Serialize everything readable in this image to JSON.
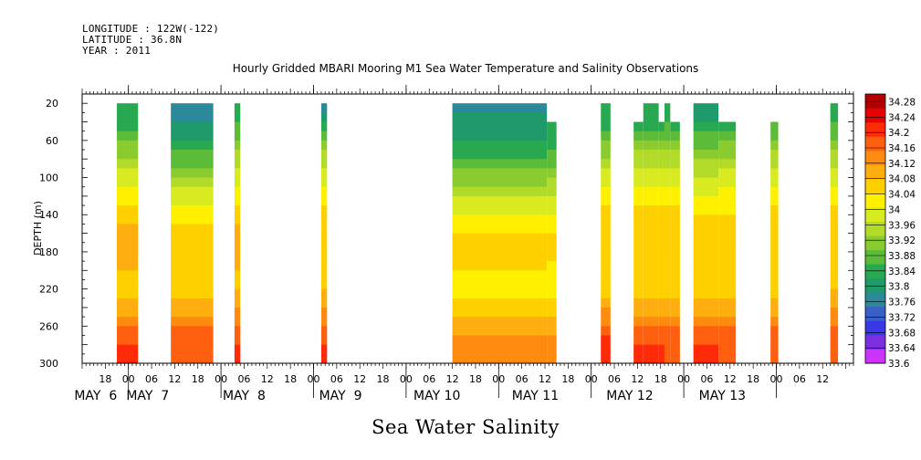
{
  "header": {
    "longitude": "LONGITUDE : 122W(-122)",
    "latitude": "LATITUDE : 36.8N",
    "year": "YEAR : 2011"
  },
  "chart_data": {
    "type": "heatmap",
    "title": "Hourly Gridded MBARI Mooring M1 Sea Water Temperature and Salinity Observations",
    "xlabel": "Sea Water Salinity",
    "ylabel": "DEPTH (m)",
    "x_unit": "hours since May 5 12:00",
    "xlim": [
      0,
      200
    ],
    "ylim": [
      300,
      0
    ],
    "y_ticks": [
      20,
      60,
      100,
      140,
      180,
      220,
      260,
      300
    ],
    "y_tick_labels": [
      "20",
      "60",
      "100",
      "140",
      "180",
      "220",
      "260",
      "300"
    ],
    "x_hour_ticks": [
      {
        "t": 6,
        "label": "18"
      },
      {
        "t": 12,
        "label": "00"
      },
      {
        "t": 18,
        "label": "06"
      },
      {
        "t": 24,
        "label": "12"
      },
      {
        "t": 30,
        "label": "18"
      },
      {
        "t": 36,
        "label": "00"
      },
      {
        "t": 42,
        "label": "06"
      },
      {
        "t": 48,
        "label": "12"
      },
      {
        "t": 54,
        "label": "18"
      },
      {
        "t": 60,
        "label": "00"
      },
      {
        "t": 66,
        "label": "06"
      },
      {
        "t": 72,
        "label": "12"
      },
      {
        "t": 78,
        "label": "18"
      },
      {
        "t": 84,
        "label": "00"
      },
      {
        "t": 90,
        "label": "06"
      },
      {
        "t": 96,
        "label": "12"
      },
      {
        "t": 102,
        "label": "18"
      },
      {
        "t": 108,
        "label": "00"
      },
      {
        "t": 114,
        "label": "06"
      },
      {
        "t": 120,
        "label": "12"
      },
      {
        "t": 126,
        "label": "18"
      },
      {
        "t": 132,
        "label": "00"
      },
      {
        "t": 138,
        "label": "06"
      },
      {
        "t": 144,
        "label": "12"
      },
      {
        "t": 150,
        "label": "18"
      },
      {
        "t": 156,
        "label": "00"
      },
      {
        "t": 162,
        "label": "06"
      },
      {
        "t": 168,
        "label": "12"
      },
      {
        "t": 174,
        "label": "18"
      },
      {
        "t": 180,
        "label": "00"
      },
      {
        "t": 186,
        "label": "06"
      },
      {
        "t": 192,
        "label": "12"
      }
    ],
    "x_day_labels": [
      {
        "t": 3.5,
        "label": "MAY  6"
      },
      {
        "t": 17,
        "label": "MAY  7"
      },
      {
        "t": 42,
        "label": "MAY  8"
      },
      {
        "t": 67,
        "label": "MAY  9"
      },
      {
        "t": 92,
        "label": "MAY 10"
      },
      {
        "t": 117.5,
        "label": "MAY 11"
      },
      {
        "t": 142,
        "label": "MAY 12"
      },
      {
        "t": 166,
        "label": "MAY 13"
      }
    ],
    "segments": [
      {
        "t0": 9,
        "t1": 14.5,
        "top": 20,
        "profile": [
          33.86,
          33.86,
          33.91,
          33.97,
          34.02,
          34.07,
          34.11,
          34.15,
          34.15,
          34.12,
          34.11,
          34.14,
          34.2,
          34.25,
          34.26,
          34.24
        ]
      },
      {
        "t0": 23,
        "t1": 34,
        "top": 20,
        "profile": [
          33.77,
          33.8,
          33.84,
          33.9,
          33.97,
          34.03,
          34.07,
          34.1,
          34.11,
          34.1,
          34.11,
          34.14,
          34.2,
          34.23,
          34.24,
          34.23
        ]
      },
      {
        "t0": 39.5,
        "t1": 41,
        "top": 20,
        "profile": [
          33.86,
          33.88,
          33.93,
          33.98,
          34.03,
          34.07,
          34.1,
          34.13,
          34.13,
          34.12,
          34.12,
          34.15,
          34.2,
          34.24,
          34.25,
          34.23
        ]
      },
      {
        "t0": 62,
        "t1": 63.5,
        "top": 20,
        "profile": [
          33.76,
          33.84,
          33.93,
          33.98,
          34.03,
          34.07,
          34.1,
          34.12,
          34.12,
          34.11,
          34.12,
          34.15,
          34.2,
          34.24,
          34.24,
          34.22
        ]
      },
      {
        "t0": 96,
        "t1": 120.5,
        "top": 20,
        "profile": [
          33.78,
          33.82,
          33.84,
          33.88,
          33.94,
          34.0,
          34.05,
          34.09,
          34.11,
          34.08,
          34.06,
          34.1,
          34.15,
          34.19,
          34.2,
          34.17
        ]
      },
      {
        "t0": 120.5,
        "t1": 123,
        "top": 40,
        "profile": [
          33.84,
          33.84,
          33.86,
          33.9,
          33.95,
          34.0,
          34.05,
          34.08,
          34.1,
          34.07,
          34.06,
          34.1,
          34.15,
          34.19,
          34.2,
          34.17
        ]
      },
      {
        "t0": 134.5,
        "t1": 137,
        "top": 20,
        "profile": [
          33.84,
          33.86,
          33.92,
          33.97,
          34.02,
          34.06,
          34.09,
          34.12,
          34.12,
          34.1,
          34.11,
          34.15,
          34.21,
          34.25,
          34.24,
          34.22
        ]
      },
      {
        "t0": 143,
        "t1": 145.5,
        "top": 40,
        "profile": [
          33.86,
          33.86,
          33.92,
          33.98,
          34.03,
          34.06,
          34.09,
          34.11,
          34.11,
          34.09,
          34.1,
          34.14,
          34.2,
          34.24,
          34.24,
          34.22
        ]
      },
      {
        "t0": 145.5,
        "t1": 149.5,
        "top": 20,
        "profile": [
          33.84,
          33.86,
          33.92,
          33.98,
          34.03,
          34.06,
          34.09,
          34.11,
          34.11,
          34.09,
          34.1,
          34.14,
          34.2,
          34.24,
          34.24,
          34.22
        ]
      },
      {
        "t0": 149.5,
        "t1": 151,
        "top": 40,
        "profile": [
          33.86,
          33.86,
          33.92,
          33.98,
          34.03,
          34.06,
          34.09,
          34.11,
          34.11,
          34.09,
          34.1,
          34.14,
          34.2,
          34.24,
          34.24,
          34.22
        ]
      },
      {
        "t0": 151,
        "t1": 152.5,
        "top": 20,
        "profile": [
          33.86,
          33.88,
          33.93,
          33.98,
          34.03,
          34.06,
          34.09,
          34.11,
          34.11,
          34.09,
          34.1,
          34.14,
          34.2,
          34.23,
          34.23,
          34.21
        ]
      },
      {
        "t0": 152.5,
        "t1": 155,
        "top": 40,
        "profile": [
          33.86,
          33.86,
          33.92,
          33.98,
          34.03,
          34.06,
          34.09,
          34.11,
          34.11,
          34.09,
          34.1,
          34.14,
          34.2,
          34.23,
          34.23,
          34.21
        ]
      },
      {
        "t0": 158.5,
        "t1": 165,
        "top": 20,
        "profile": [
          33.8,
          33.84,
          33.9,
          33.96,
          34.01,
          34.05,
          34.08,
          34.1,
          34.1,
          34.09,
          34.1,
          34.14,
          34.2,
          34.24,
          34.24,
          34.22
        ]
      },
      {
        "t0": 165,
        "t1": 169.5,
        "top": 40,
        "profile": [
          33.86,
          33.86,
          33.91,
          33.97,
          34.02,
          34.05,
          34.08,
          34.1,
          34.1,
          34.09,
          34.1,
          34.14,
          34.2,
          34.23,
          34.23,
          34.21
        ]
      },
      {
        "t0": 178.5,
        "t1": 180.5,
        "top": 40,
        "profile": [
          33.88,
          33.88,
          33.93,
          33.98,
          34.03,
          34.06,
          34.09,
          34.11,
          34.11,
          34.1,
          34.11,
          34.14,
          34.2,
          34.23,
          34.23,
          34.22
        ]
      },
      {
        "t0": 194,
        "t1": 196,
        "top": 20,
        "profile": [
          33.86,
          33.88,
          33.93,
          33.98,
          34.03,
          34.07,
          34.1,
          34.12,
          34.12,
          34.11,
          34.12,
          34.16,
          34.2,
          34.22,
          34.22,
          34.2
        ]
      }
    ],
    "colorbar": {
      "min": 33.6,
      "max": 34.3,
      "step": 0.04,
      "labels": [
        "34.28",
        "34.24",
        "34.2",
        "34.16",
        "34.12",
        "34.08",
        "34.04",
        "34",
        "33.96",
        "33.92",
        "33.88",
        "33.84",
        "33.8",
        "33.76",
        "33.72",
        "33.68",
        "33.64",
        "33.6"
      ],
      "colors": [
        "#cc33ff",
        "#7a2fe0",
        "#3838e8",
        "#3a5fc8",
        "#2b8a9a",
        "#1f9a6a",
        "#28a850",
        "#5cbc3a",
        "#8acc30",
        "#b2da28",
        "#d8ea20",
        "#fff000",
        "#ffd000",
        "#ffae10",
        "#ff8a10",
        "#ff6010",
        "#ff2a08",
        "#e60000",
        "#b00000"
      ]
    },
    "grid": false
  }
}
